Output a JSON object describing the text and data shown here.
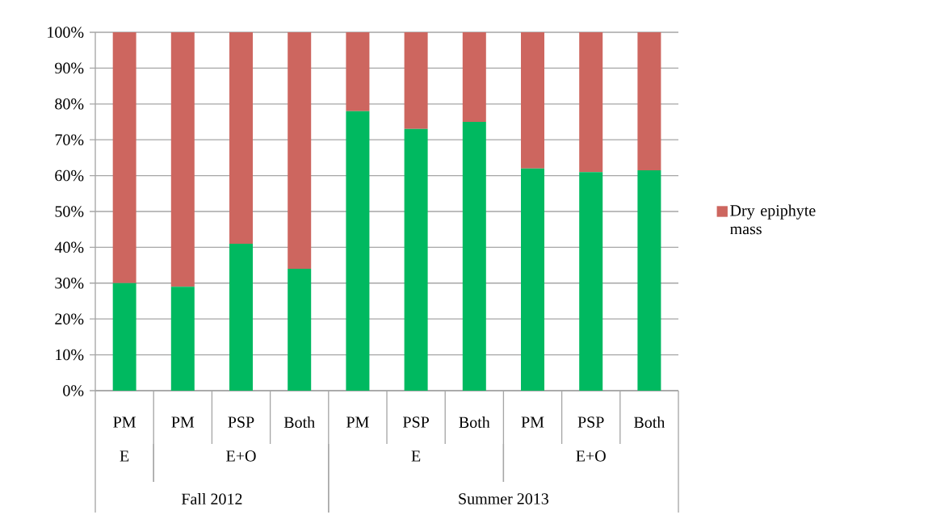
{
  "chart_data": {
    "type": "bar",
    "stacked": true,
    "categories": [
      "PM",
      "PM",
      "PSP",
      "Both",
      "PM",
      "PSP",
      "Both",
      "PM",
      "PSP",
      "Both"
    ],
    "series": [
      {
        "color": "#00b960",
        "values": [
          30,
          29,
          41,
          34,
          78,
          73,
          75,
          62,
          61,
          61.5
        ]
      },
      {
        "name": "Dry epiphyte mass",
        "color": "#cd665f",
        "values": [
          70,
          71,
          59,
          66,
          22,
          27,
          25,
          38,
          39,
          38.5
        ]
      }
    ],
    "ylim": [
      0,
      100
    ],
    "yticks": [
      {
        "value": 0,
        "label": "0%"
      },
      {
        "value": 10,
        "label": "10%"
      },
      {
        "value": 20,
        "label": "20%"
      },
      {
        "value": 30,
        "label": "30%"
      },
      {
        "value": 40,
        "label": "40%"
      },
      {
        "value": 50,
        "label": "50%"
      },
      {
        "value": 60,
        "label": "60%"
      },
      {
        "value": 70,
        "label": "70%"
      },
      {
        "value": 80,
        "label": "80%"
      },
      {
        "value": 90,
        "label": "90%"
      },
      {
        "value": 100,
        "label": "100%"
      }
    ],
    "grid": "y",
    "legend": "right",
    "annotations": [
      "E",
      "E+O",
      "E",
      "E+O",
      "Fall 2012",
      "Summer 2013"
    ]
  }
}
